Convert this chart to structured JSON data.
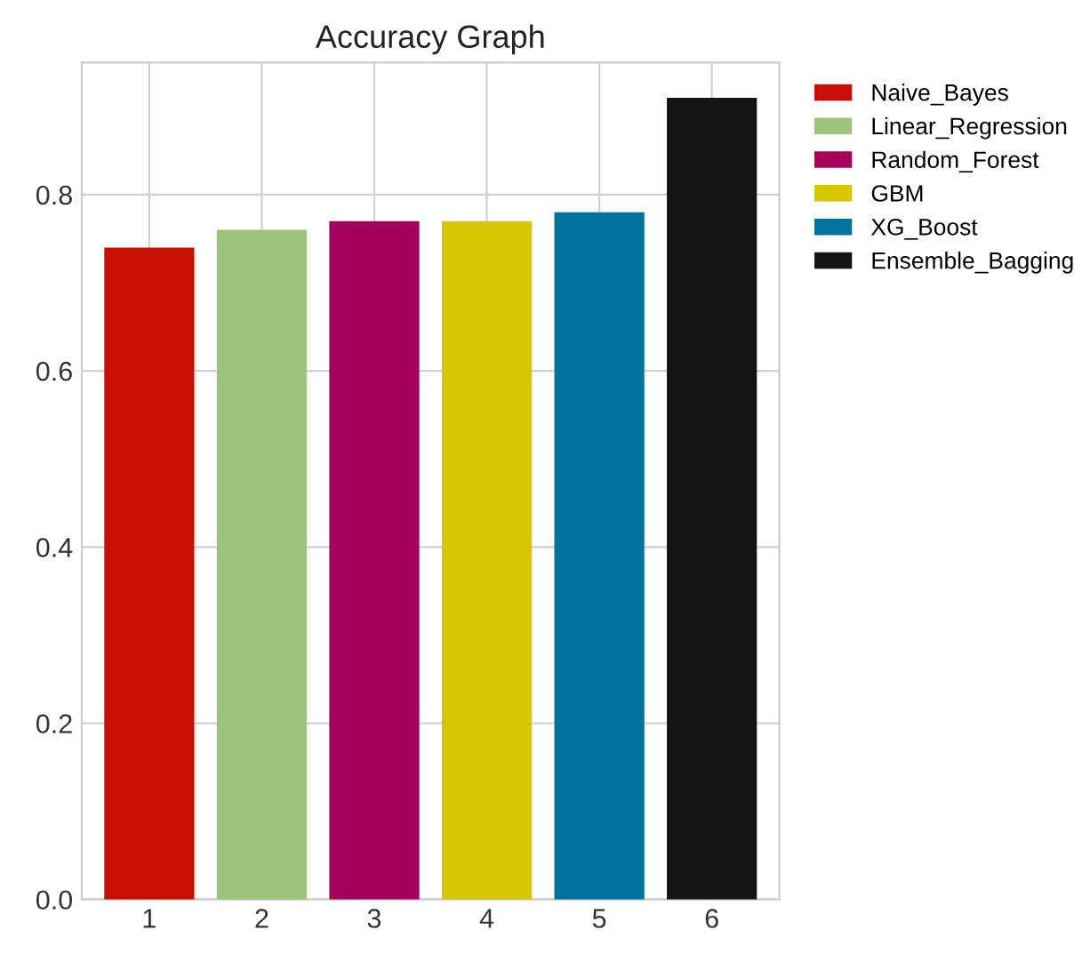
{
  "chart_data": {
    "type": "bar",
    "title": "Accuracy Graph",
    "categories": [
      "1",
      "2",
      "3",
      "4",
      "5",
      "6"
    ],
    "series": [
      {
        "name": "Naive_Bayes",
        "color": "#c90f05",
        "values": [
          0.74,
          null,
          null,
          null,
          null,
          null
        ]
      },
      {
        "name": "Linear_Regression",
        "color": "#9dc47a",
        "values": [
          null,
          0.76,
          null,
          null,
          null,
          null
        ]
      },
      {
        "name": "Random_Forest",
        "color": "#a3005b",
        "values": [
          null,
          null,
          0.77,
          null,
          null,
          null
        ]
      },
      {
        "name": "GBM",
        "color": "#d6c500",
        "values": [
          null,
          null,
          null,
          0.77,
          null,
          null
        ]
      },
      {
        "name": "XG_Boost",
        "color": "#0072a0",
        "values": [
          null,
          null,
          null,
          null,
          0.78,
          null
        ]
      },
      {
        "name": "Ensemble_Bagging",
        "color": "#141414",
        "values": [
          null,
          null,
          null,
          null,
          null,
          0.91
        ]
      }
    ],
    "ylim": [
      0,
      0.95
    ],
    "yticks": [
      {
        "value": 0,
        "label": "0.0"
      },
      0.2,
      0.4,
      0.6,
      0.8
    ],
    "grid": true,
    "legend": "right"
  }
}
